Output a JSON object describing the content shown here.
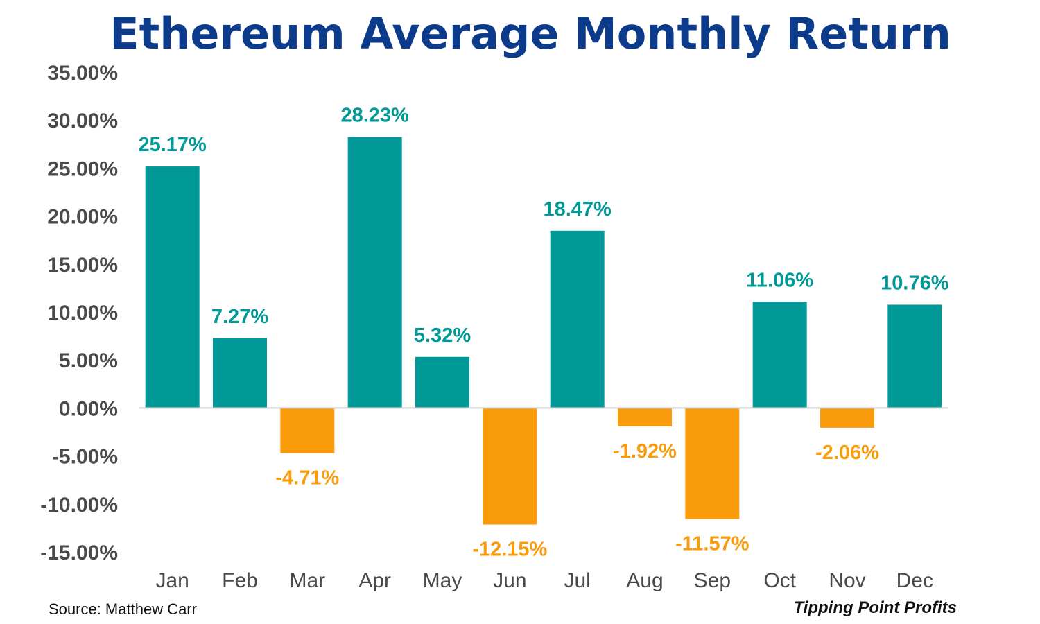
{
  "colors": {
    "title": "#0d3b8c",
    "positive": "#019997",
    "negative": "#f99b0b",
    "axis_text": "#4a4a4a",
    "baseline": "#cfcfcf",
    "footer_text": "#111111"
  },
  "chart_data": {
    "type": "bar",
    "title": "Ethereum Average Monthly Return",
    "xlabel": "",
    "ylabel": "",
    "categories": [
      "Jan",
      "Feb",
      "Mar",
      "Apr",
      "May",
      "Jun",
      "Jul",
      "Aug",
      "Sep",
      "Oct",
      "Nov",
      "Dec"
    ],
    "values": [
      25.17,
      7.27,
      -4.71,
      28.23,
      5.32,
      -12.15,
      18.47,
      -1.92,
      -11.57,
      11.06,
      -2.06,
      10.76
    ],
    "data_labels": [
      "25.17%",
      "7.27%",
      "-4.71%",
      "28.23%",
      "5.32%",
      "-12.15%",
      "18.47%",
      "-1.92%",
      "-11.57%",
      "11.06%",
      "-2.06%",
      "10.76%"
    ],
    "ylim": [
      -15,
      35
    ],
    "yticks": [
      35,
      30,
      25,
      20,
      15,
      10,
      5,
      0,
      -5,
      -10,
      -15
    ],
    "ytick_labels": [
      "35.00%",
      "30.00%",
      "25.00%",
      "20.00%",
      "15.00%",
      "10.00%",
      "5.00%",
      "0.00%",
      "-5.00%",
      "-10.00%",
      "-15.00%"
    ],
    "grid": false,
    "legend": "none"
  },
  "footer": {
    "source": "Source: Matthew Carr",
    "brand": "Tipping Point Profits"
  }
}
